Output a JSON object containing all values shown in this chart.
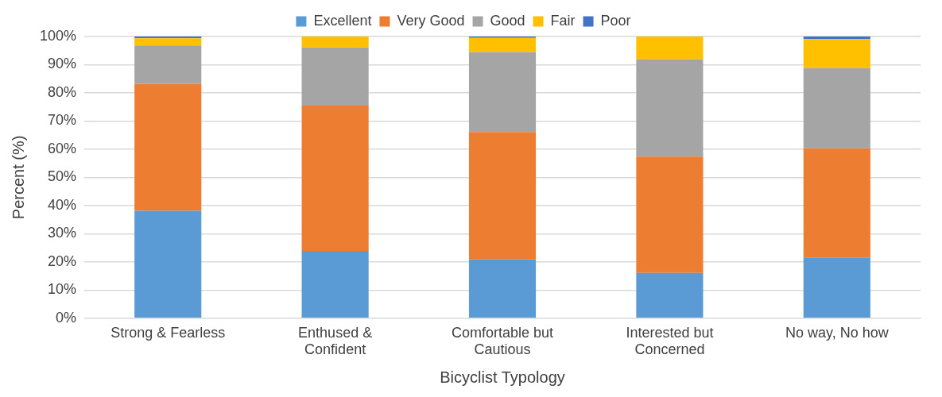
{
  "chart_data": {
    "type": "bar",
    "stacked": true,
    "xlabel": "Bicyclist Typology",
    "ylabel": "Percent (%)",
    "categories": [
      "Strong & Fearless",
      "Enthused & Confident",
      "Comfortable but Cautious",
      "Interested but Concerned",
      "No way, No how"
    ],
    "series": [
      {
        "name": "Excellent",
        "color": "#5b9bd5",
        "values": [
          38.1,
          23.9,
          21,
          16.1,
          21.6
        ]
      },
      {
        "name": "Very Good",
        "color": "#ed7d31",
        "values": [
          45.1,
          51.6,
          45.1,
          41.3,
          38.7
        ]
      },
      {
        "name": "Good",
        "color": "#a5a5a5",
        "values": [
          13.6,
          20.6,
          28.4,
          34.6,
          28.5
        ]
      },
      {
        "name": "Fair",
        "color": "#ffc000",
        "values": [
          2.6,
          3.9,
          5,
          8,
          10.3
        ]
      },
      {
        "name": "Poor",
        "color": "#4472c4",
        "values": [
          0.6,
          0,
          0.5,
          0,
          0.9
        ]
      }
    ],
    "ylim": [
      0,
      100
    ],
    "yticks": [
      {
        "value": 0,
        "label": "0%"
      },
      {
        "value": 10,
        "label": "10%"
      },
      {
        "value": 20,
        "label": "20%"
      },
      {
        "value": 30,
        "label": "30%"
      },
      {
        "value": 40,
        "label": "40%"
      },
      {
        "value": 50,
        "label": "50%"
      },
      {
        "value": 60,
        "label": "60%"
      },
      {
        "value": 70,
        "label": "70%"
      },
      {
        "value": 80,
        "label": "80%"
      },
      {
        "value": 90,
        "label": "90%"
      },
      {
        "value": 100,
        "label": "100%"
      }
    ],
    "grid": "y",
    "legend": "top"
  }
}
